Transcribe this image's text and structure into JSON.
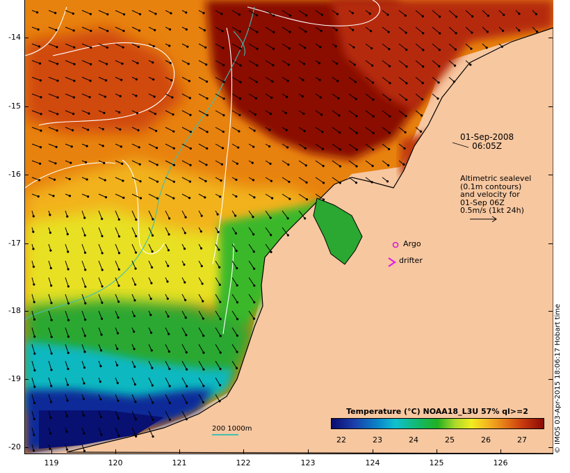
{
  "map": {
    "y_axis_labels": [
      "-14",
      "-15",
      "-16",
      "-17",
      "-18",
      "-19",
      "-20"
    ],
    "x_axis_labels": [
      "119",
      "120",
      "121",
      "122",
      "123",
      "124",
      "125",
      "126"
    ],
    "timestamp_date": "01-Sep-2008",
    "timestamp_time": "06:05Z",
    "altimetry_lines": [
      "Altimetric sealevel",
      "(0.1m contours)",
      "and velocity for",
      "01-Sep 06Z",
      "0.5m/s (1kt 24h)"
    ],
    "argo_label": "Argo",
    "drifter_label": "drifter",
    "bathymetry_label": "200  1000m",
    "colorbar_title": "Temperature (°C) NOAA18_L3U 57% ql>=2",
    "colorbar_ticks": [
      "22",
      "23",
      "24",
      "25",
      "26",
      "27"
    ],
    "credit": "© IMOS 03-Apr-2015 18:06:17 Hobart time"
  },
  "colors": {
    "land": "#f7c7a0",
    "warm": "#8a0a05",
    "cold": "#0a0b6e",
    "argo": "#d020d0",
    "drifter": "#e020e0",
    "bathymetry": "#3fbfb0",
    "contours": "#ffffff"
  },
  "map_data": {
    "lon_range": [
      118.6,
      126.7
    ],
    "lat_range": [
      -20.1,
      -13.6
    ],
    "argo": {
      "lon": 124.35,
      "lat": -17.05
    },
    "drifter": {
      "lon": 124.3,
      "lat": -17.3
    }
  }
}
